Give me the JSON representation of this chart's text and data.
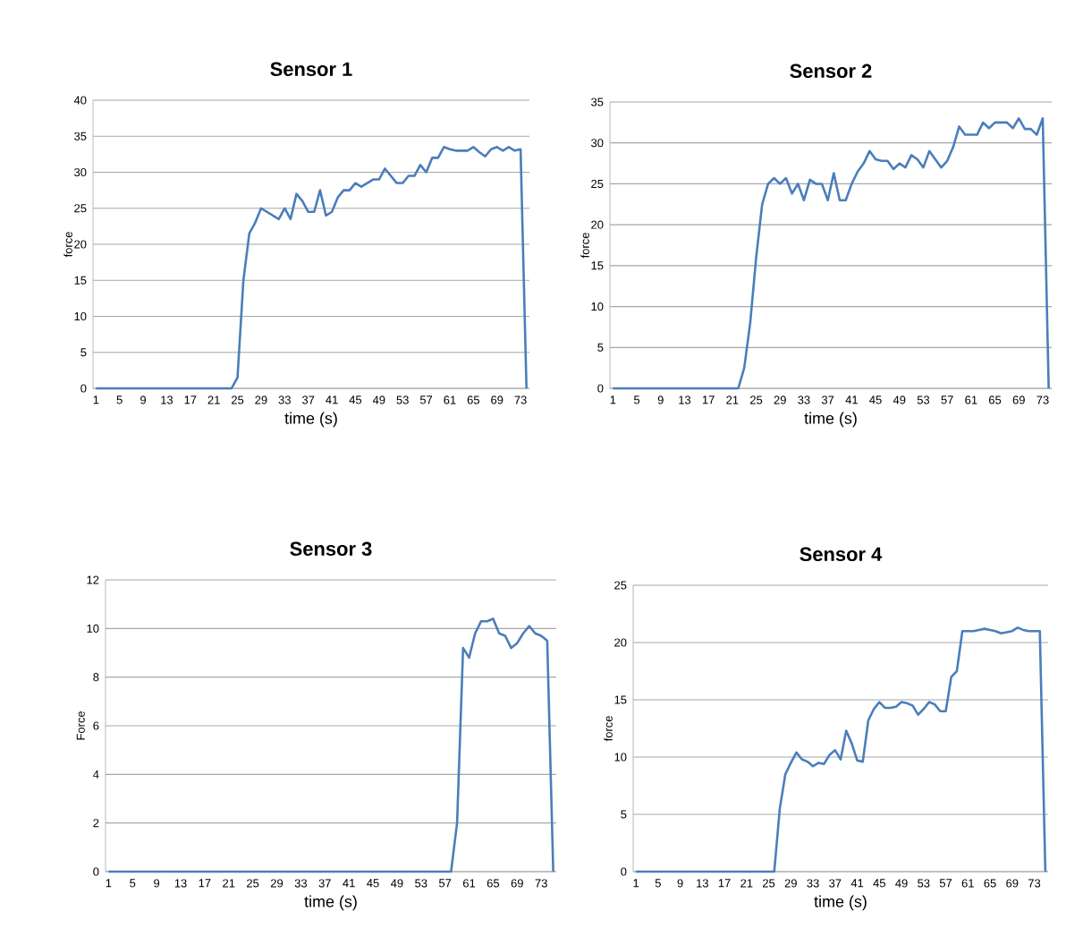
{
  "chart_data": [
    {
      "type": "line",
      "title": "Sensor 1",
      "xlabel": "time (s)",
      "ylabel": "force",
      "color": "#4a7ebb",
      "grid": "y",
      "ylim": [
        0,
        40
      ],
      "yticks": [
        0,
        5,
        10,
        15,
        20,
        25,
        30,
        35,
        40
      ],
      "categories": [
        "1",
        null,
        null,
        null,
        "5",
        null,
        null,
        null,
        "9",
        null,
        null,
        null,
        "13",
        null,
        null,
        null,
        "17",
        null,
        null,
        null,
        "21",
        null,
        null,
        null,
        "25",
        null,
        null,
        null,
        "29",
        null,
        null,
        null,
        "33",
        null,
        null,
        null,
        "37",
        null,
        null,
        null,
        "41",
        null,
        null,
        null,
        "45",
        null,
        null,
        null,
        "49",
        null,
        null,
        null,
        "53",
        null,
        null,
        null,
        "57",
        null,
        null,
        null,
        "61",
        null,
        null,
        null,
        "65",
        null,
        null,
        null,
        "69",
        null,
        null,
        null,
        "73",
        null
      ],
      "values": [
        0,
        0,
        0,
        0,
        0,
        0,
        0,
        0,
        0,
        0,
        0,
        0,
        0,
        0,
        0,
        0,
        0,
        0,
        0,
        0,
        0,
        0,
        0,
        0,
        1.5,
        15,
        21.5,
        23,
        25,
        24.5,
        24,
        23.5,
        25,
        23.5,
        27,
        26,
        24.5,
        24.5,
        27.5,
        24,
        24.5,
        26.5,
        27.5,
        27.5,
        28.5,
        28,
        28.5,
        29,
        29,
        30.5,
        29.5,
        28.5,
        28.5,
        29.5,
        29.5,
        31,
        30,
        32,
        32,
        33.5,
        33.2,
        33,
        33,
        33,
        33.5,
        32.8,
        32.2,
        33.2,
        33.5,
        33,
        33.5,
        33,
        33.2,
        0
      ]
    },
    {
      "type": "line",
      "title": "Sensor 2",
      "xlabel": "time (s)",
      "ylabel": "force",
      "color": "#4a7ebb",
      "grid": "y",
      "ylim": [
        0,
        35
      ],
      "yticks": [
        0,
        5,
        10,
        15,
        20,
        25,
        30,
        35
      ],
      "categories": [
        "1",
        null,
        null,
        null,
        "5",
        null,
        null,
        null,
        "9",
        null,
        null,
        null,
        "13",
        null,
        null,
        null,
        "17",
        null,
        null,
        null,
        "21",
        null,
        null,
        null,
        "25",
        null,
        null,
        null,
        "29",
        null,
        null,
        null,
        "33",
        null,
        null,
        null,
        "37",
        null,
        null,
        null,
        "41",
        null,
        null,
        null,
        "45",
        null,
        null,
        null,
        "49",
        null,
        null,
        null,
        "53",
        null,
        null,
        null,
        "57",
        null,
        null,
        null,
        "61",
        null,
        null,
        null,
        "65",
        null,
        null,
        null,
        "69",
        null,
        null,
        null,
        "73",
        null
      ],
      "values": [
        0,
        0,
        0,
        0,
        0,
        0,
        0,
        0,
        0,
        0,
        0,
        0,
        0,
        0,
        0,
        0,
        0,
        0,
        0,
        0,
        0,
        0,
        2.5,
        8,
        16,
        22.5,
        25,
        25.7,
        25,
        25.7,
        23.8,
        25,
        23,
        25.5,
        25,
        25,
        23,
        26.3,
        23,
        23,
        25,
        26.5,
        27.5,
        29,
        28,
        27.8,
        27.8,
        26.8,
        27.5,
        27,
        28.5,
        28,
        27,
        29,
        28,
        27,
        27.8,
        29.5,
        32,
        31,
        31,
        31,
        32.5,
        31.8,
        32.5,
        32.5,
        32.5,
        31.8,
        33,
        31.7,
        31.7,
        31,
        33,
        0
      ]
    },
    {
      "type": "line",
      "title": "Sensor 3",
      "xlabel": "time (s)",
      "ylabel": "Force",
      "color": "#4a7ebb",
      "grid": "y",
      "ylim": [
        0,
        12
      ],
      "yticks": [
        0,
        2,
        4,
        6,
        8,
        10,
        12
      ],
      "categories": [
        "1",
        null,
        null,
        null,
        "5",
        null,
        null,
        null,
        "9",
        null,
        null,
        null,
        "13",
        null,
        null,
        null,
        "17",
        null,
        null,
        null,
        "21",
        null,
        null,
        null,
        "25",
        null,
        null,
        null,
        "29",
        null,
        null,
        null,
        "33",
        null,
        null,
        null,
        "37",
        null,
        null,
        null,
        "41",
        null,
        null,
        null,
        "45",
        null,
        null,
        null,
        "49",
        null,
        null,
        null,
        "53",
        null,
        null,
        null,
        "57",
        null,
        null,
        null,
        "61",
        null,
        null,
        null,
        "65",
        null,
        null,
        null,
        "69",
        null,
        null,
        null,
        "73",
        null,
        null
      ],
      "values": [
        0,
        0,
        0,
        0,
        0,
        0,
        0,
        0,
        0,
        0,
        0,
        0,
        0,
        0,
        0,
        0,
        0,
        0,
        0,
        0,
        0,
        0,
        0,
        0,
        0,
        0,
        0,
        0,
        0,
        0,
        0,
        0,
        0,
        0,
        0,
        0,
        0,
        0,
        0,
        0,
        0,
        0,
        0,
        0,
        0,
        0,
        0,
        0,
        0,
        0,
        0,
        0,
        0,
        0,
        0,
        0,
        0,
        0,
        2,
        9.2,
        8.8,
        9.8,
        10.3,
        10.3,
        10.4,
        9.8,
        9.7,
        9.2,
        9.4,
        9.8,
        10.1,
        9.8,
        9.7,
        9.5,
        0
      ]
    },
    {
      "type": "line",
      "title": "Sensor 4",
      "xlabel": "time (s)",
      "ylabel": "force",
      "color": "#4a7ebb",
      "grid": "y",
      "ylim": [
        0,
        25
      ],
      "yticks": [
        0,
        5,
        10,
        15,
        20,
        25
      ],
      "categories": [
        "1",
        null,
        null,
        null,
        "5",
        null,
        null,
        null,
        "9",
        null,
        null,
        null,
        "13",
        null,
        null,
        null,
        "17",
        null,
        null,
        null,
        "21",
        null,
        null,
        null,
        "25",
        null,
        null,
        null,
        "29",
        null,
        null,
        null,
        "33",
        null,
        null,
        null,
        "37",
        null,
        null,
        null,
        "41",
        null,
        null,
        null,
        "45",
        null,
        null,
        null,
        "49",
        null,
        null,
        null,
        "53",
        null,
        null,
        null,
        "57",
        null,
        null,
        null,
        "61",
        null,
        null,
        null,
        "65",
        null,
        null,
        null,
        "69",
        null,
        null,
        null,
        "73",
        null,
        null
      ],
      "values": [
        0,
        0,
        0,
        0,
        0,
        0,
        0,
        0,
        0,
        0,
        0,
        0,
        0,
        0,
        0,
        0,
        0,
        0,
        0,
        0,
        0,
        0,
        0,
        0,
        0,
        0,
        5.5,
        8.5,
        9.5,
        10.4,
        9.8,
        9.6,
        9.2,
        9.5,
        9.4,
        10.2,
        10.6,
        9.8,
        12.3,
        11.2,
        9.7,
        9.6,
        13.2,
        14.2,
        14.8,
        14.3,
        14.3,
        14.4,
        14.8,
        14.7,
        14.5,
        13.7,
        14.2,
        14.8,
        14.6,
        14,
        14,
        17,
        17.5,
        21,
        21,
        21,
        21.1,
        21.2,
        21.1,
        21,
        20.8,
        20.9,
        21,
        21.3,
        21.1,
        21,
        21,
        21,
        0
      ]
    }
  ]
}
